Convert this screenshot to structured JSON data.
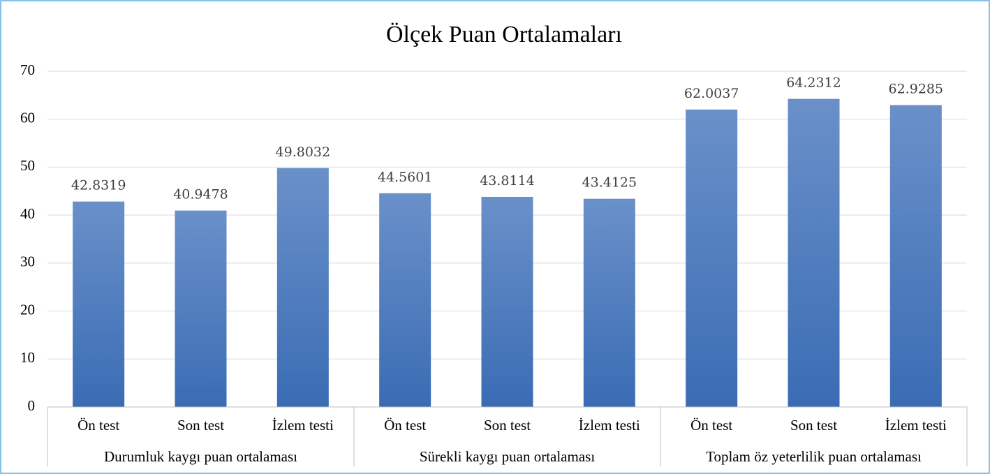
{
  "chart_data": {
    "type": "bar",
    "title": "Ölçek Puan Ortalamaları",
    "groups": [
      {
        "name": "Durumluk kaygı puan ortalaması",
        "categories": [
          "Ön test",
          "Son test",
          "İzlem testi"
        ],
        "values": [
          42.8319,
          40.9478,
          49.8032
        ]
      },
      {
        "name": "Sürekli kaygı puan ortalaması",
        "categories": [
          "Ön test",
          "Son test",
          "İzlem testi"
        ],
        "values": [
          44.5601,
          43.8114,
          43.4125
        ]
      },
      {
        "name": "Toplam öz yeterlilik puan ortalaması",
        "categories": [
          "Ön test",
          "Son test",
          "İzlem testi"
        ],
        "values": [
          62.0037,
          64.2312,
          62.9285
        ]
      }
    ],
    "color": "#4f81c4",
    "ylim": [
      0,
      70
    ],
    "yticks": [
      0,
      10,
      20,
      30,
      40,
      50,
      60,
      70
    ],
    "grid": true
  }
}
